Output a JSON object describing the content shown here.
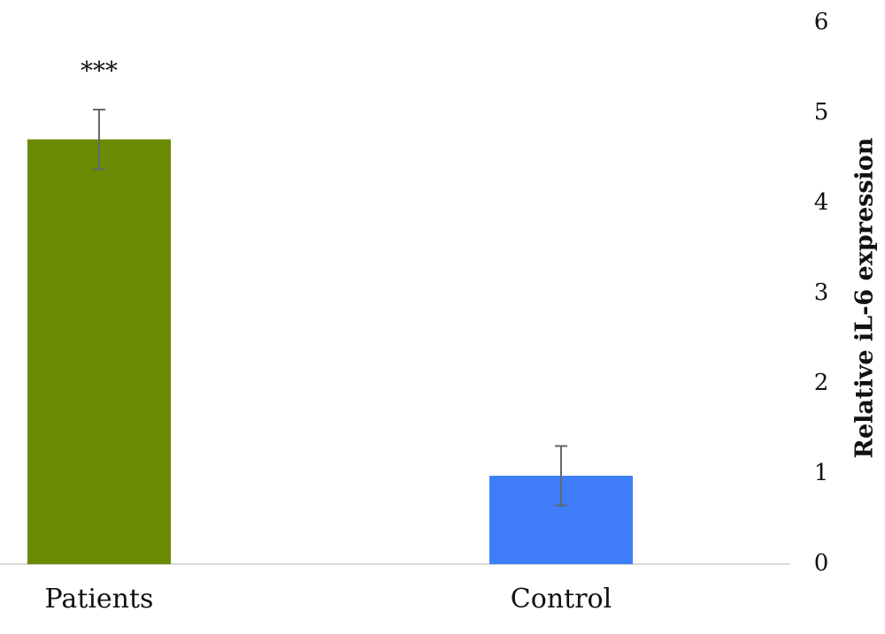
{
  "chart_data": {
    "type": "bar",
    "categories": [
      "Patients",
      "Control"
    ],
    "values": [
      4.71,
      0.98
    ],
    "errors": [
      0.33,
      0.33
    ],
    "colors": [
      "#6b8a04",
      "#3f7ef8"
    ],
    "annotations": [
      "***",
      null
    ],
    "y_axis_label": "Relative iL-6 expression",
    "y_axis_side": "right",
    "ylim": [
      0,
      6
    ],
    "yticks": [
      0,
      1,
      2,
      3,
      4,
      5,
      6
    ],
    "grid": false
  }
}
